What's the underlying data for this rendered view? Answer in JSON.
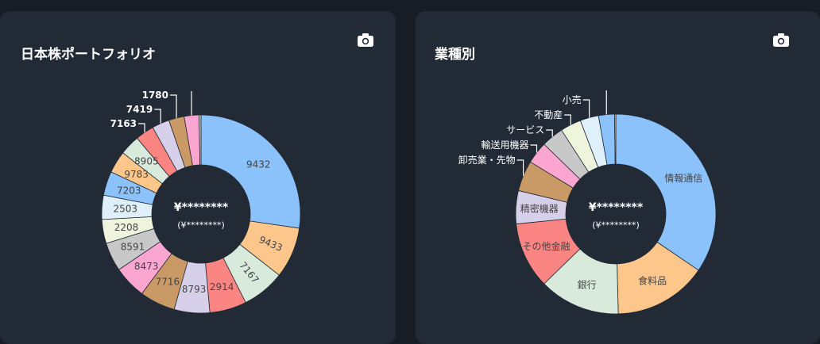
{
  "cards": [
    {
      "title": "日本株ポートフォリオ",
      "camera_icon": "camera-icon",
      "center_total": "¥********",
      "center_sub": "(¥********)"
    },
    {
      "title": "業種別",
      "camera_icon": "camera-icon",
      "center_total": "¥********",
      "center_sub": "(¥********)"
    }
  ],
  "colors": {
    "background": "#181d25",
    "card": "#212a35"
  },
  "chart_data": [
    {
      "type": "pie",
      "donut": true,
      "title": "日本株ポートフォリオ",
      "slices": [
        {
          "label": "9432",
          "value": 25.0,
          "color": "#8cc2fb"
        },
        {
          "label": "9433",
          "value": 7.6,
          "color": "#fdc68a"
        },
        {
          "label": "7167",
          "value": 6.4,
          "color": "#d7eadb"
        },
        {
          "label": "2914",
          "value": 5.5,
          "color": "#fb8582"
        },
        {
          "label": "8793",
          "value": 5.3,
          "color": "#d7d0ea"
        },
        {
          "label": "7716",
          "value": 5.3,
          "color": "#c99966"
        },
        {
          "label": "8473",
          "value": 4.9,
          "color": "#fba6d1"
        },
        {
          "label": "8591",
          "value": 4.3,
          "color": "#c8c8c8"
        },
        {
          "label": "2208",
          "value": 3.6,
          "color": "#eef5dc"
        },
        {
          "label": "2503",
          "value": 3.6,
          "color": "#dff0fb"
        },
        {
          "label": "7203",
          "value": 3.6,
          "color": "#8cc2fb"
        },
        {
          "label": "9783",
          "value": 3.3,
          "color": "#fdc68a"
        },
        {
          "label": "8905",
          "value": 3.0,
          "color": "#d7eadb"
        },
        {
          "label": "7163",
          "value": 2.8,
          "color": "#fb8582"
        },
        {
          "label": "7419",
          "value": 2.6,
          "color": "#d7d0ea"
        },
        {
          "label": "1780",
          "value": 2.3,
          "color": "#c99966"
        },
        {
          "label": "",
          "value": 2.2,
          "color": "#fba6d1"
        },
        {
          "label": "",
          "value": 0.3,
          "color": "#c8c8c8"
        }
      ],
      "inside_labels": [
        "9432",
        "9433",
        "7167",
        "2914",
        "8793",
        "7716",
        "8473",
        "8591",
        "2208",
        "2503",
        "7203",
        "9783",
        "8905"
      ],
      "outside_labels": [
        "7163",
        "7419",
        "1780"
      ]
    },
    {
      "type": "pie",
      "donut": true,
      "title": "業種別",
      "slices": [
        {
          "label": "情報通信",
          "value": 34.8,
          "color": "#8cc2fb"
        },
        {
          "label": "食料品",
          "value": 15.2,
          "color": "#fdc68a"
        },
        {
          "label": "銀行",
          "value": 13.2,
          "color": "#d7eadb"
        },
        {
          "label": "その他金融",
          "value": 10.8,
          "color": "#fb8582"
        },
        {
          "label": "精密機器",
          "value": 5.4,
          "color": "#d7d0ea"
        },
        {
          "label": "卸売業・先物",
          "value": 5.0,
          "color": "#c99966"
        },
        {
          "label": "輸送用機器",
          "value": 3.6,
          "color": "#fba6d1"
        },
        {
          "label": "サービス",
          "value": 3.6,
          "color": "#c8c8c8"
        },
        {
          "label": "不動産",
          "value": 3.4,
          "color": "#eef5dc"
        },
        {
          "label": "小売",
          "value": 3.0,
          "color": "#dff0fb"
        },
        {
          "label": "",
          "value": 2.6,
          "color": "#8cc2fb"
        },
        {
          "label": "",
          "value": 0.2,
          "color": "#fdc68a"
        }
      ],
      "inside_labels": [
        "情報通信",
        "食料品",
        "銀行",
        "その他金融",
        "精密機器"
      ],
      "outside_labels": [
        "卸売業・先物",
        "輸送用機器",
        "サービス",
        "不動産",
        "小売"
      ]
    }
  ]
}
